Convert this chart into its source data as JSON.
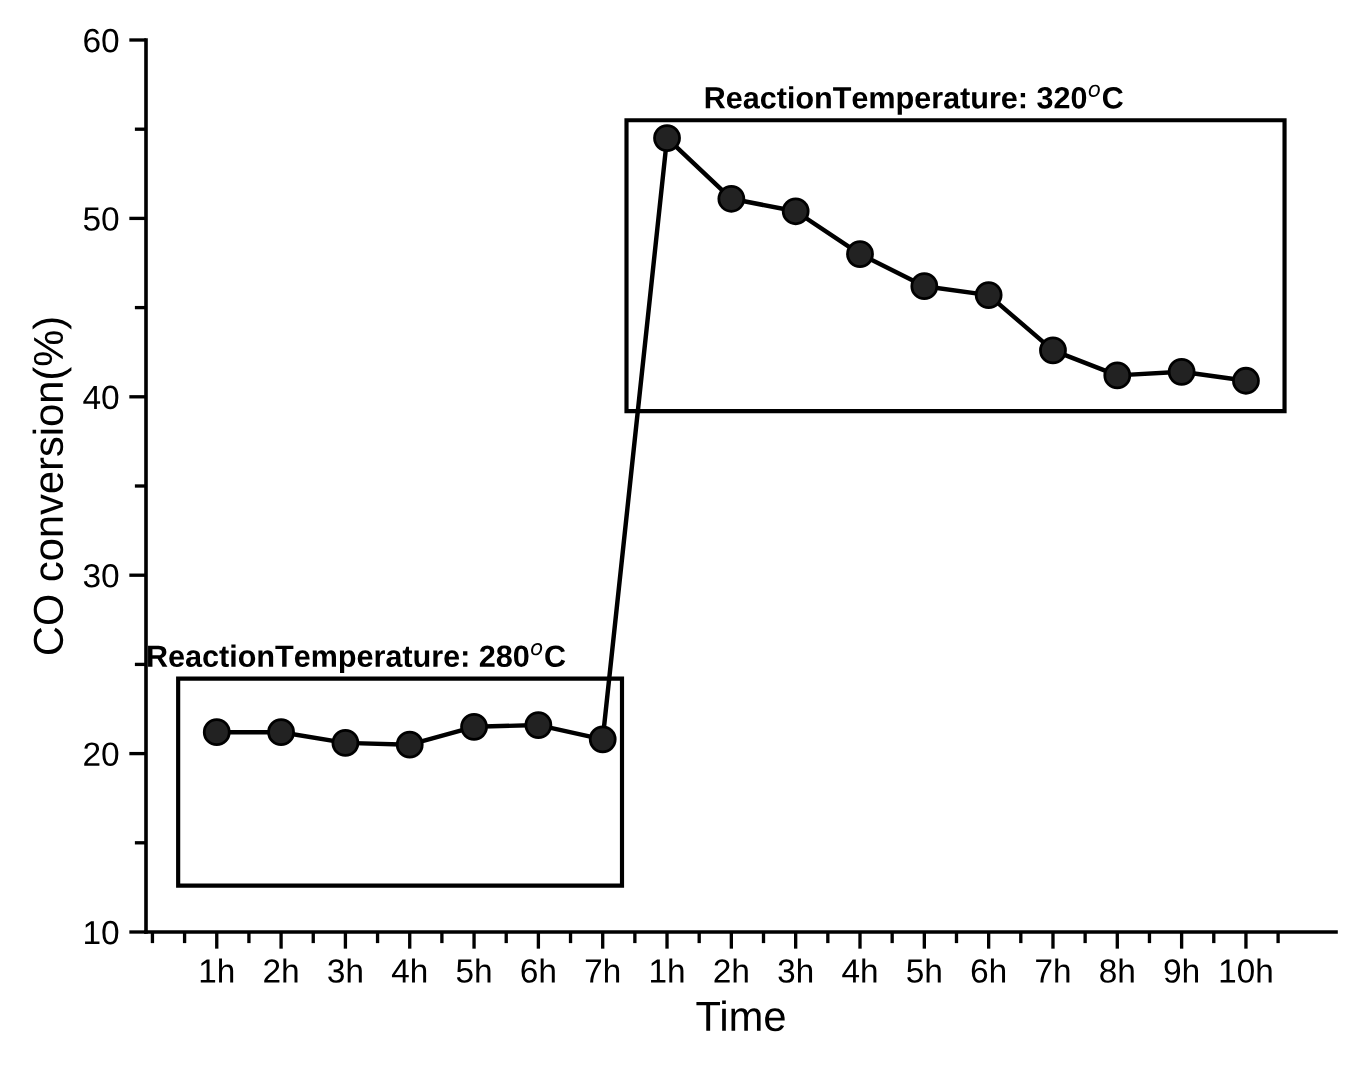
{
  "chart_data": {
    "type": "line",
    "xlabel": "Time",
    "ylabel": "CO conversion(%)",
    "categories": [
      "1h",
      "2h",
      "3h",
      "4h",
      "5h",
      "6h",
      "7h",
      "1h",
      "2h",
      "3h",
      "4h",
      "5h",
      "6h",
      "7h",
      "8h",
      "9h",
      "10h"
    ],
    "series": [
      {
        "color": "#000000",
        "values": [
          21.2,
          21.2,
          20.6,
          20.5,
          21.5,
          21.6,
          20.8,
          54.5,
          51.1,
          50.4,
          48.0,
          46.2,
          45.7,
          42.6,
          41.2,
          41.4,
          40.9
        ]
      }
    ],
    "ylim": [
      10,
      60
    ],
    "yticks": [
      10,
      20,
      30,
      40,
      50,
      60
    ],
    "marker": "circle",
    "line_style": "solid",
    "grid": false,
    "legend": false,
    "annotations": [
      "ReactionTemperature: 280$^{o}$C",
      "ReactionTemperature: 320$^{o}$C"
    ]
  }
}
